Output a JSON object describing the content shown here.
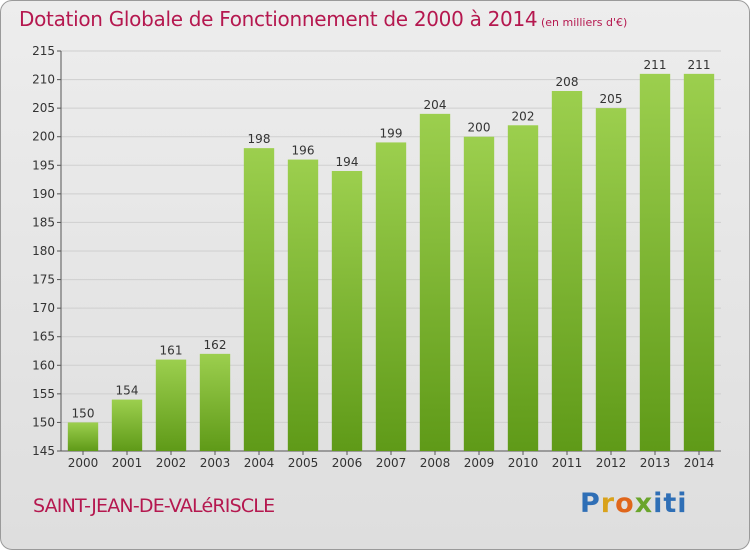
{
  "header": {
    "title": "Dotation Globale de Fonctionnement de 2000 à 2014",
    "unit_note": "(en milliers d'€)"
  },
  "footer": {
    "commune": "SAINT-JEAN-DE-VALéRISCLE",
    "logo": "Proxiti"
  },
  "colors": {
    "title": "#b5184f",
    "bar_light": "#9ccf4e",
    "bar_dark": "#5f9a18",
    "grid": "#cfcfcf"
  },
  "chart_data": {
    "type": "bar",
    "categories": [
      "2000",
      "2001",
      "2002",
      "2003",
      "2004",
      "2005",
      "2006",
      "2007",
      "2008",
      "2009",
      "2010",
      "2011",
      "2012",
      "2013",
      "2014"
    ],
    "values": [
      150,
      154,
      161,
      162,
      198,
      196,
      194,
      199,
      204,
      200,
      202,
      208,
      205,
      211,
      211
    ],
    "title": "Dotation Globale de Fonctionnement de 2000 à 2014",
    "xlabel": "",
    "ylabel": "",
    "ylim": [
      145,
      215
    ],
    "yticks": [
      145,
      150,
      155,
      160,
      165,
      170,
      175,
      180,
      185,
      190,
      195,
      200,
      205,
      210,
      215
    ],
    "grid": true
  }
}
